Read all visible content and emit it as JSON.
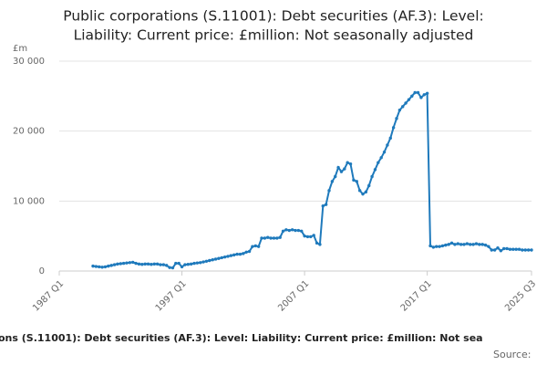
{
  "chart_data": {
    "type": "line",
    "title_lines": [
      "Public corporations (S.11001): Debt securities (AF.3): Level:",
      "Liability: Current price: £million: Not seasonally adjusted"
    ],
    "y_unit": "£m",
    "footer_title": "ons (S.11001): Debt securities (AF.3): Level: Liability: Current price: £million: Not sea",
    "footer_source": "Source:",
    "categories": [
      "1987 Q1",
      null,
      null,
      null,
      null,
      null,
      null,
      null,
      null,
      null,
      null,
      null,
      null,
      null,
      null,
      null,
      null,
      null,
      null,
      null,
      null,
      null,
      null,
      null,
      null,
      null,
      null,
      null,
      null,
      null,
      null,
      null,
      null,
      null,
      null,
      null,
      null,
      null,
      null,
      null,
      "1997 Q1",
      null,
      null,
      null,
      null,
      null,
      null,
      null,
      null,
      null,
      null,
      null,
      null,
      null,
      null,
      null,
      null,
      null,
      null,
      null,
      null,
      null,
      null,
      null,
      null,
      null,
      null,
      null,
      null,
      null,
      null,
      null,
      null,
      null,
      null,
      null,
      null,
      null,
      null,
      null,
      "2007 Q1",
      null,
      null,
      null,
      null,
      null,
      null,
      null,
      null,
      null,
      null,
      null,
      null,
      null,
      null,
      null,
      null,
      null,
      null,
      null,
      null,
      null,
      null,
      null,
      null,
      null,
      null,
      null,
      null,
      null,
      null,
      null,
      null,
      null,
      null,
      null,
      null,
      null,
      null,
      null,
      "2017 Q1",
      null,
      null,
      null,
      null,
      null,
      null,
      null,
      null,
      null,
      null,
      null,
      null,
      null,
      null,
      null,
      null,
      null,
      null,
      null,
      null,
      null,
      null,
      null,
      null,
      null,
      null,
      null,
      null,
      null,
      null,
      null,
      null,
      null,
      "2025 Q3"
    ],
    "values": [
      null,
      null,
      null,
      null,
      null,
      null,
      null,
      null,
      null,
      null,
      null,
      700,
      650,
      600,
      550,
      600,
      700,
      800,
      900,
      1000,
      1050,
      1100,
      1150,
      1200,
      1250,
      1100,
      1000,
      950,
      1000,
      1000,
      950,
      1000,
      1000,
      900,
      900,
      800,
      500,
      450,
      1100,
      1100,
      600,
      900,
      950,
      1000,
      1100,
      1150,
      1200,
      1300,
      1400,
      1500,
      1600,
      1700,
      1800,
      1900,
      2000,
      2100,
      2200,
      2300,
      2400,
      2400,
      2500,
      2700,
      2800,
      3500,
      3600,
      3500,
      4700,
      4700,
      4800,
      4700,
      4700,
      4700,
      4800,
      5700,
      5900,
      5800,
      5900,
      5800,
      5800,
      5700,
      5000,
      4900,
      4900,
      5100,
      4000,
      3800,
      9300,
      9500,
      11500,
      12800,
      13500,
      14800,
      14200,
      14600,
      15500,
      15300,
      13000,
      12800,
      11500,
      11000,
      11300,
      12200,
      13500,
      14500,
      15500,
      16200,
      17000,
      18000,
      19000,
      20500,
      21800,
      23000,
      23500,
      24000,
      24500,
      25000,
      25500,
      25500,
      24800,
      25200,
      25400,
      3600,
      3400,
      3500,
      3500,
      3600,
      3700,
      3800,
      4000,
      3800,
      3900,
      3800,
      3800,
      3900,
      3800,
      3800,
      3900,
      3800,
      3800,
      3700,
      3500,
      3000,
      3000,
      3300,
      2900,
      3200,
      3200,
      3100,
      3100,
      3100,
      3100,
      3000,
      3000,
      3000,
      3000
    ],
    "color": "#1f7abc",
    "ylim": [
      0,
      30000
    ],
    "yticks": [
      0,
      {
        "value": 10000,
        "label": "10 000"
      },
      {
        "value": 20000,
        "label": "20 000"
      },
      {
        "value": 30000,
        "label": "30 000"
      }
    ],
    "grid": true
  }
}
